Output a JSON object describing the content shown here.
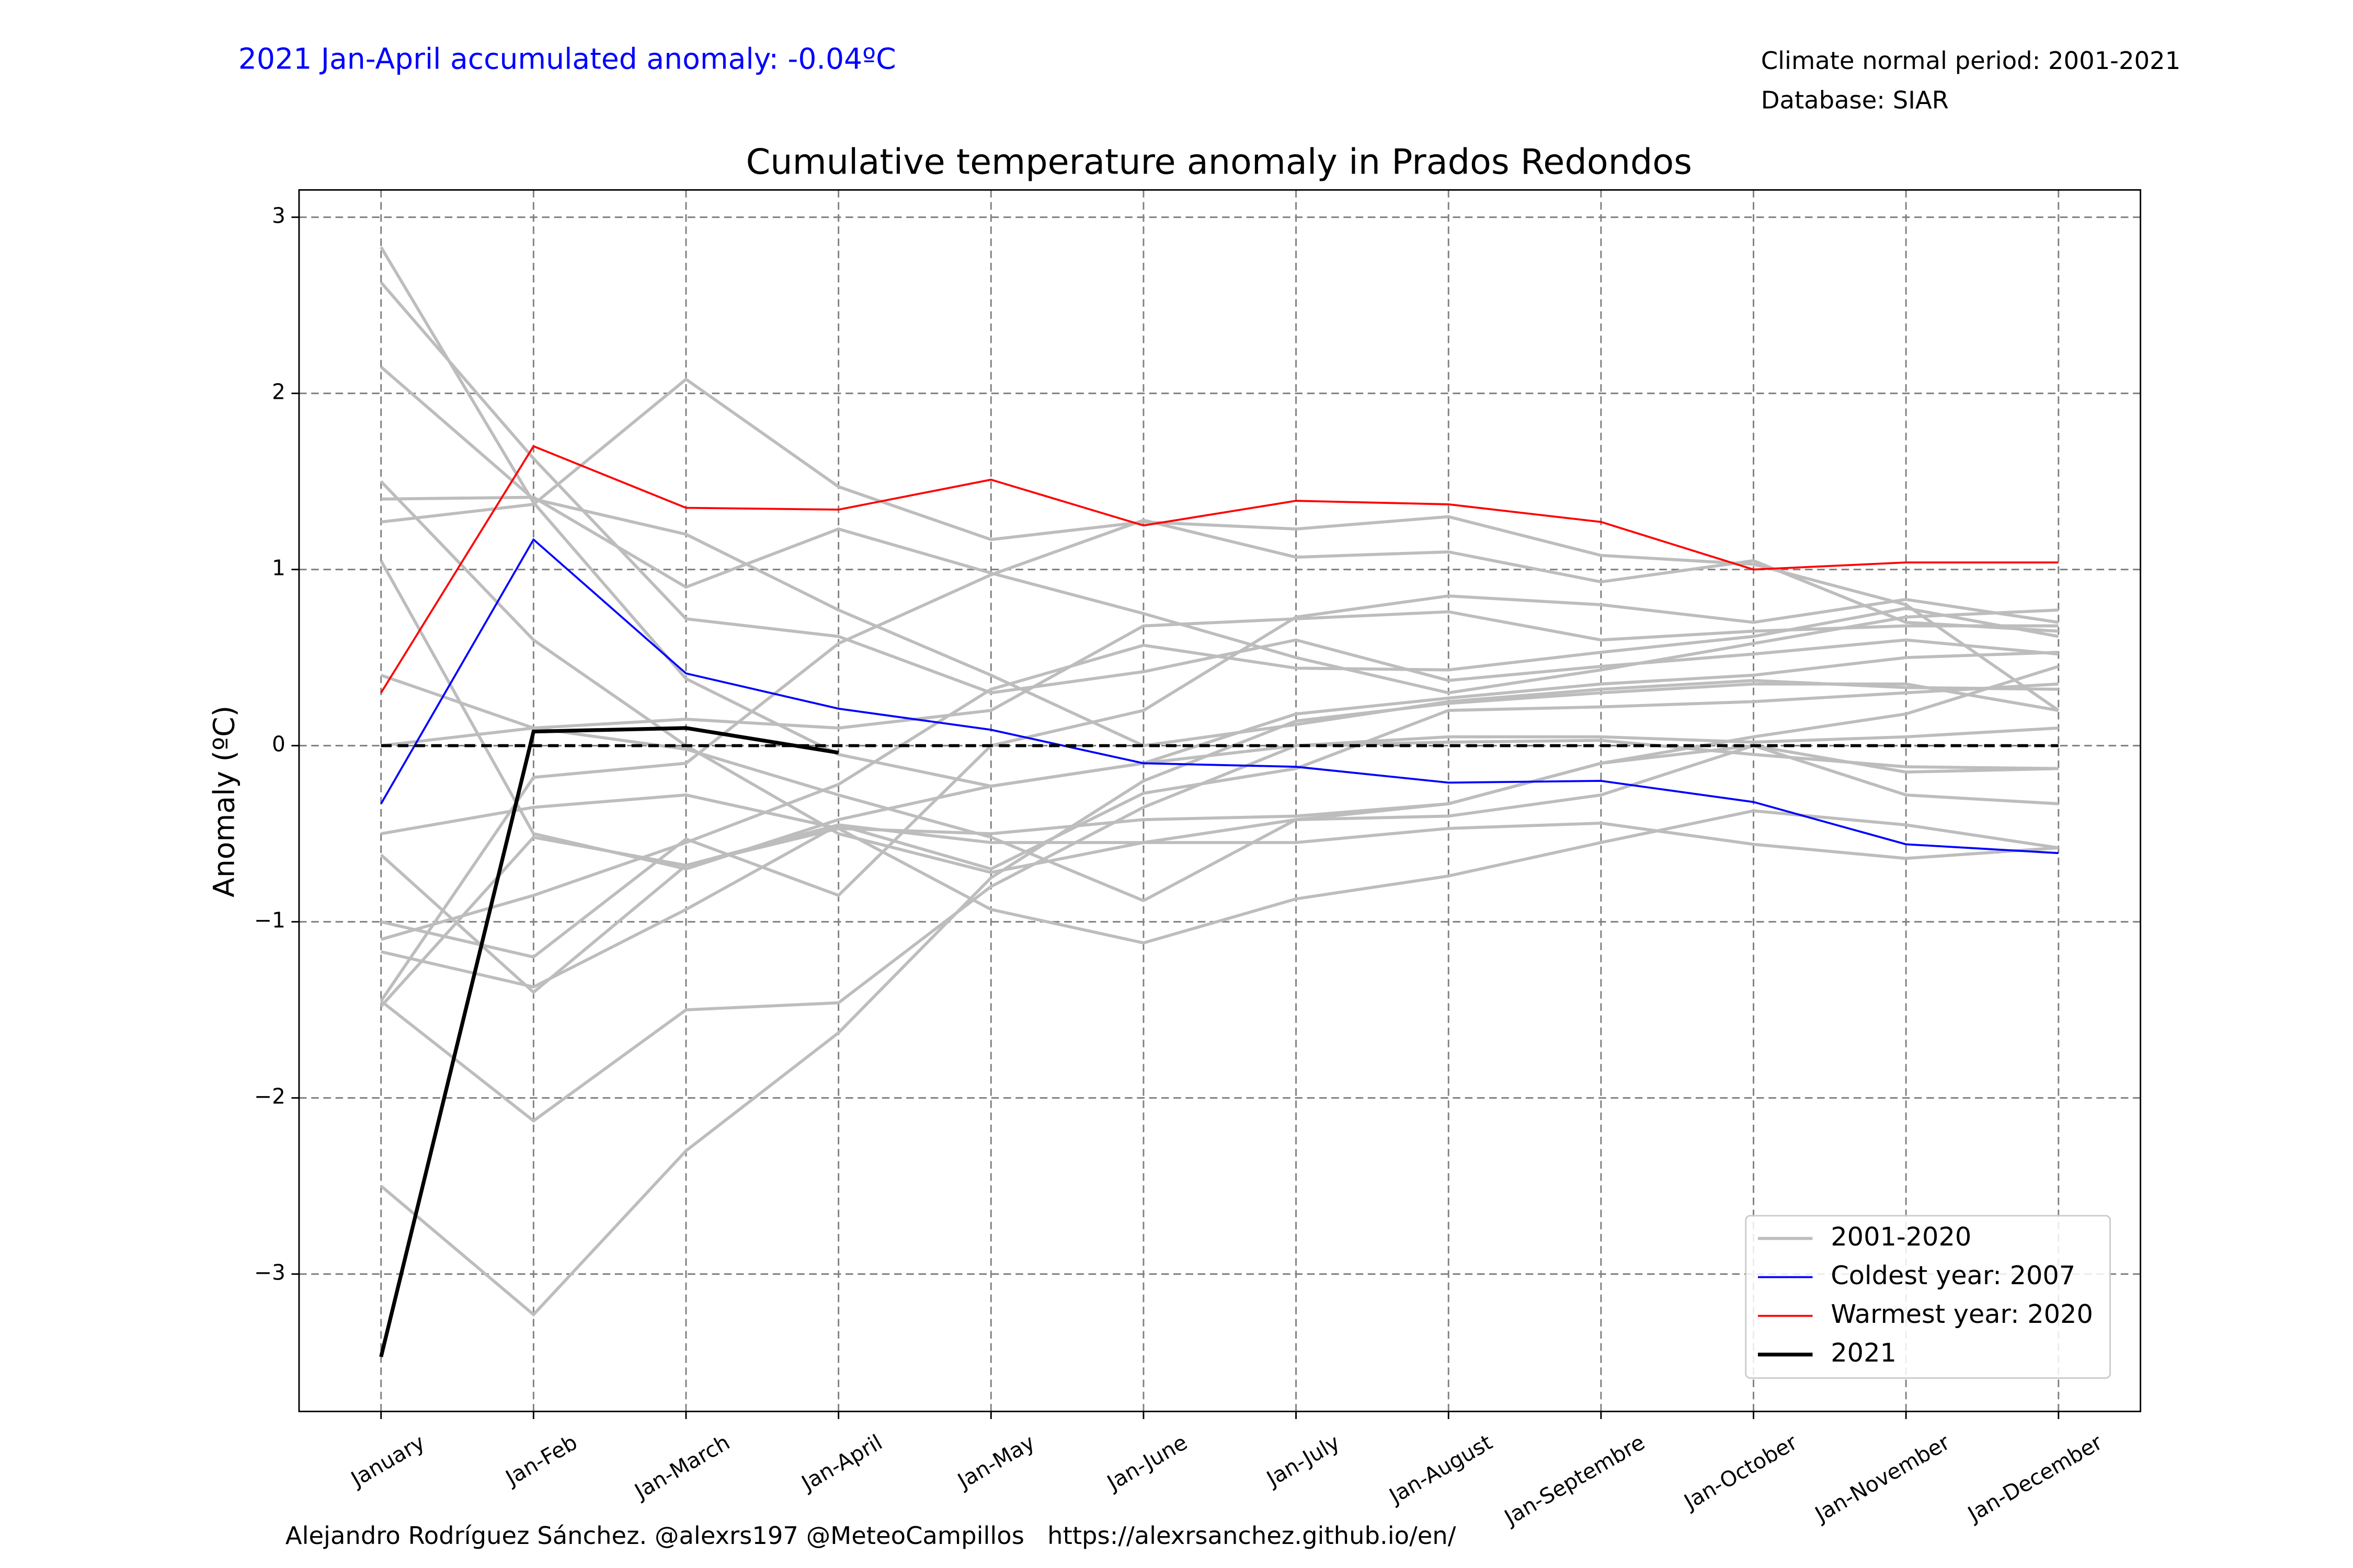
{
  "chart_data": {
    "type": "line",
    "title": "Cumulative temperature anomaly in Prados Redondos",
    "annotation": "2021 Jan-April accumulated anomaly: -0.04ºC",
    "info": [
      "Climate normal period: 2001-2021",
      "Database: SIAR"
    ],
    "footer": "Alejandro Rodríguez Sánchez. @alexrs197 @MeteoCampillos   https://alexrsanchez.github.io/en/",
    "ylabel": "Anomaly (ºC)",
    "categories": [
      "January",
      "Jan-Feb",
      "Jan-March",
      "Jan-April",
      "Jan-May",
      "Jan-June",
      "Jan-July",
      "Jan-August",
      "Jan-Septembre",
      "Jan-October",
      "Jan-November",
      "Jan-December"
    ],
    "ylim": [
      -3.78,
      3.155
    ],
    "yticks": [
      {
        "value": -3,
        "label": "−3"
      },
      {
        "value": -2,
        "label": "−2"
      },
      {
        "value": -1,
        "label": "−1"
      },
      0,
      1,
      2,
      3
    ],
    "grid": true,
    "legend": "lower right",
    "reference_line": 0,
    "series": [
      {
        "name": "2001-2020",
        "color": "#bdbdbd",
        "lines": [
          [
            2.83,
            1.38,
            0.38,
            -0.05,
            -0.23,
            -0.1,
            0.0,
            0.05,
            0.05,
            0.02,
            0.05,
            0.1
          ],
          [
            2.63,
            1.63,
            0.72,
            0.62,
            0.3,
            0.42,
            0.6,
            0.37,
            0.45,
            0.52,
            0.6,
            0.52
          ],
          [
            2.15,
            1.4,
            1.2,
            0.77,
            0.4,
            0.0,
            0.12,
            0.25,
            0.32,
            0.37,
            0.33,
            0.32
          ],
          [
            1.5,
            0.6,
            0.0,
            -0.5,
            -0.72,
            -0.55,
            -0.42,
            -0.33,
            -0.1,
            0.0,
            -0.15,
            -0.13
          ],
          [
            1.4,
            1.41,
            0.9,
            1.23,
            0.98,
            0.75,
            0.5,
            0.3,
            0.43,
            0.58,
            0.73,
            0.77
          ],
          [
            1.27,
            1.37,
            2.08,
            1.47,
            1.17,
            1.27,
            1.23,
            1.3,
            1.08,
            1.03,
            0.8,
            0.2
          ],
          [
            1.05,
            -0.5,
            -0.7,
            -0.42,
            -0.23,
            -0.1,
            0.18,
            0.27,
            0.35,
            0.4,
            0.5,
            0.53
          ],
          [
            0.4,
            0.1,
            0.15,
            0.1,
            0.2,
            0.68,
            0.72,
            0.76,
            0.6,
            0.65,
            0.68,
            0.68
          ],
          [
            0.0,
            0.1,
            -0.02,
            -0.28,
            -0.52,
            -0.88,
            -0.42,
            -0.4,
            -0.28,
            0.0,
            -0.28,
            -0.33
          ],
          [
            -0.5,
            -0.35,
            -0.28,
            -0.47,
            -0.5,
            -0.42,
            -0.4,
            -0.33,
            -0.1,
            0.05,
            0.18,
            0.45
          ],
          [
            -0.62,
            -1.4,
            -0.68,
            -0.47,
            -0.93,
            -1.12,
            -0.87,
            -0.74,
            -0.55,
            -0.37,
            -0.45,
            -0.58
          ],
          [
            -1.0,
            -1.2,
            -0.53,
            -0.85,
            0.0,
            0.2,
            0.73,
            0.85,
            0.8,
            0.7,
            0.83,
            0.7
          ],
          [
            -1.1,
            -0.85,
            -0.55,
            -0.22,
            0.32,
            0.57,
            0.44,
            0.43,
            0.53,
            0.62,
            0.78,
            0.62
          ],
          [
            -1.17,
            -1.37,
            -0.93,
            -0.45,
            -0.55,
            -0.55,
            -0.55,
            -0.47,
            -0.44,
            -0.56,
            -0.64,
            -0.58
          ],
          [
            -1.45,
            -0.18,
            -0.1,
            0.58,
            0.97,
            1.28,
            1.07,
            1.1,
            0.93,
            1.05,
            0.7,
            0.65
          ],
          [
            -1.48,
            -0.52,
            -0.68,
            -0.45,
            -0.7,
            -0.27,
            -0.13,
            0.2,
            0.22,
            0.25,
            0.3,
            0.35
          ],
          [
            -2.5,
            -3.23,
            -2.3,
            -1.63,
            -0.75,
            -0.2,
            0.14,
            0.24,
            0.3,
            0.35,
            0.35,
            0.2
          ],
          [
            -1.45,
            -2.13,
            -1.5,
            -1.46,
            -0.8,
            -0.35,
            0.0,
            0.02,
            0.03,
            -0.05,
            -0.12,
            -0.13
          ]
        ]
      },
      {
        "name": "Coldest year: 2007",
        "color": "#0000ff",
        "values": [
          -0.33,
          1.17,
          0.41,
          0.21,
          0.09,
          -0.1,
          -0.12,
          -0.21,
          -0.2,
          -0.32,
          -0.56,
          -0.61
        ]
      },
      {
        "name": "Warmest year: 2020",
        "color": "#ff0000",
        "values": [
          0.3,
          1.7,
          1.35,
          1.34,
          1.51,
          1.25,
          1.39,
          1.37,
          1.27,
          1.0,
          1.04,
          1.04
        ]
      },
      {
        "name": "2021",
        "color": "#000000",
        "values": [
          -3.47,
          0.08,
          0.1,
          -0.04,
          null,
          null,
          null,
          null,
          null,
          null,
          null,
          null
        ]
      }
    ]
  }
}
